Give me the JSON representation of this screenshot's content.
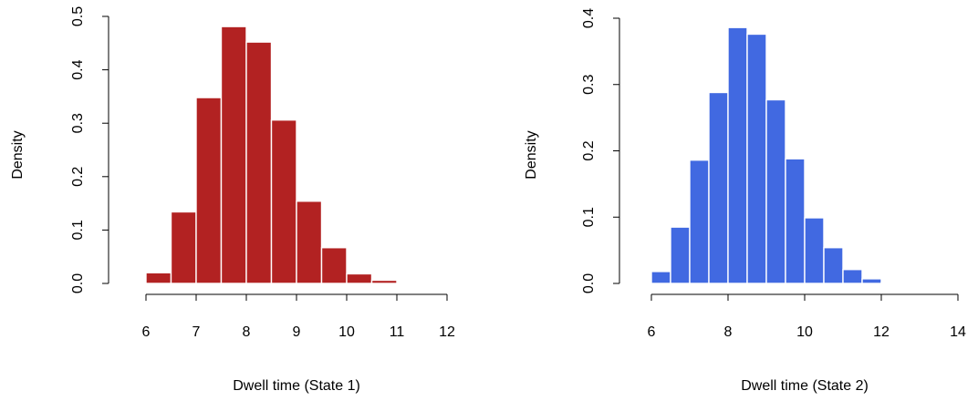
{
  "chart_data": [
    {
      "type": "bar",
      "subtype": "histogram",
      "title": "",
      "xlabel": "Dwell time (State 1)",
      "ylabel": "Density",
      "xlim": [
        6,
        12
      ],
      "ylim": [
        0,
        0.5
      ],
      "xticks": [
        6,
        7,
        8,
        9,
        10,
        11,
        12
      ],
      "yticks": [
        0.0,
        0.1,
        0.2,
        0.3,
        0.4,
        0.5
      ],
      "xtick_labels": [
        "6",
        "7",
        "8",
        "9",
        "10",
        "11",
        "12"
      ],
      "ytick_labels": [
        "0.0",
        "0.1",
        "0.2",
        "0.3",
        "0.4",
        "0.5"
      ],
      "bin_width": 0.5,
      "bin_starts": [
        6.0,
        6.5,
        7.0,
        7.5,
        8.0,
        8.5,
        9.0,
        9.5,
        10.0,
        10.5
      ],
      "values": [
        0.02,
        0.134,
        0.348,
        0.481,
        0.452,
        0.306,
        0.154,
        0.067,
        0.018,
        0.006
      ],
      "color": "#b22222",
      "grid": false
    },
    {
      "type": "bar",
      "subtype": "histogram",
      "title": "",
      "xlabel": "Dwell time (State 2)",
      "ylabel": "Density",
      "xlim": [
        6,
        14
      ],
      "ylim": [
        0,
        0.4
      ],
      "xticks": [
        6,
        8,
        10,
        12,
        14
      ],
      "yticks": [
        0.0,
        0.1,
        0.2,
        0.3,
        0.4
      ],
      "xtick_labels": [
        "6",
        "8",
        "10",
        "12",
        "14"
      ],
      "ytick_labels": [
        "0.0",
        "0.1",
        "0.2",
        "0.3",
        "0.4"
      ],
      "bin_width": 0.5,
      "bin_starts": [
        6.0,
        6.5,
        7.0,
        7.5,
        8.0,
        8.5,
        9.0,
        9.5,
        10.0,
        10.5,
        11.0,
        11.5,
        12.0
      ],
      "values": [
        0.018,
        0.085,
        0.186,
        0.288,
        0.386,
        0.376,
        0.277,
        0.188,
        0.099,
        0.054,
        0.021,
        0.007,
        0.001
      ],
      "color": "#4169e1",
      "grid": false
    }
  ]
}
